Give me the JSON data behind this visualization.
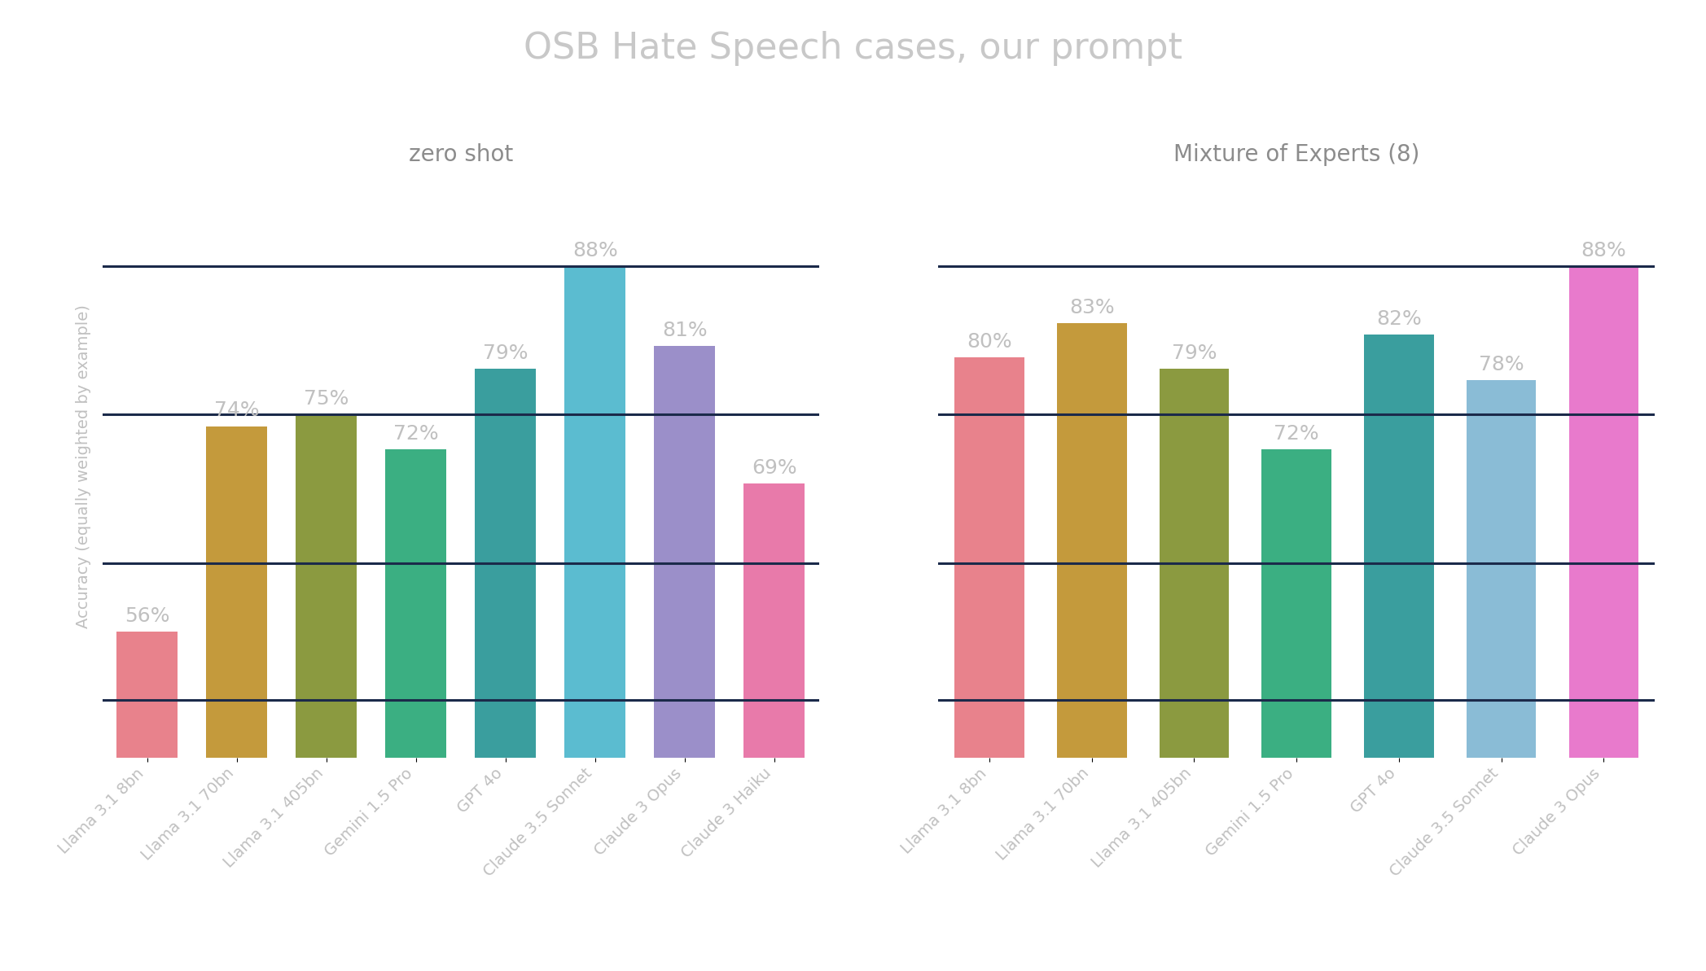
{
  "title": "OSB Hate Speech cases, our prompt",
  "left_subtitle": "zero shot",
  "right_subtitle": "Mixture of Experts (8)",
  "ylabel": "Accuracy (equally weighted by example)",
  "left_categories": [
    "Llama 3.1 8bn",
    "Llama 3.1 70bn",
    "Llama 3.1 405bn",
    "Gemini 1.5 Pro",
    "GPT 4o",
    "Claude 3.5 Sonnet",
    "Claude 3 Opus",
    "Claude 3 Haiku"
  ],
  "right_categories": [
    "Llama 3.1 8bn",
    "Llama 3.1 70bn",
    "Llama 3.1 405bn",
    "Gemini 1.5 Pro",
    "GPT 4o",
    "Claude 3.5 Sonnet",
    "Claude 3 Opus"
  ],
  "left_values": [
    0.56,
    0.74,
    0.75,
    0.72,
    0.79,
    0.88,
    0.81,
    0.69
  ],
  "right_values": [
    0.8,
    0.83,
    0.79,
    0.72,
    0.82,
    0.78,
    0.88
  ],
  "left_bar_colors": [
    "#E8828C",
    "#C49A3C",
    "#8B9A40",
    "#3BAF82",
    "#3A9E9E",
    "#5BBCD0",
    "#9B8FC9",
    "#E87AAA"
  ],
  "right_bar_colors": [
    "#E8828C",
    "#C49A3C",
    "#8B9A40",
    "#3BAF82",
    "#3A9E9E",
    "#8ABCD6",
    "#E87ACC"
  ],
  "hlines": [
    0.88,
    0.75,
    0.62,
    0.5
  ],
  "hline_color": "#1B2A4A",
  "hline_linewidth": 2.2,
  "title_color": "#C8C8C8",
  "subtitle_color": "#8C8C8C",
  "ylabel_color": "#C0C0C0",
  "label_color": "#C0C0C0",
  "value_label_color": "#C0C0C0",
  "background_color": "#FFFFFF",
  "ylim_min": 0.45,
  "ylim_max": 0.96,
  "title_fontsize": 32,
  "subtitle_fontsize": 20,
  "ylabel_fontsize": 14,
  "label_fontsize": 14,
  "value_fontsize": 18
}
